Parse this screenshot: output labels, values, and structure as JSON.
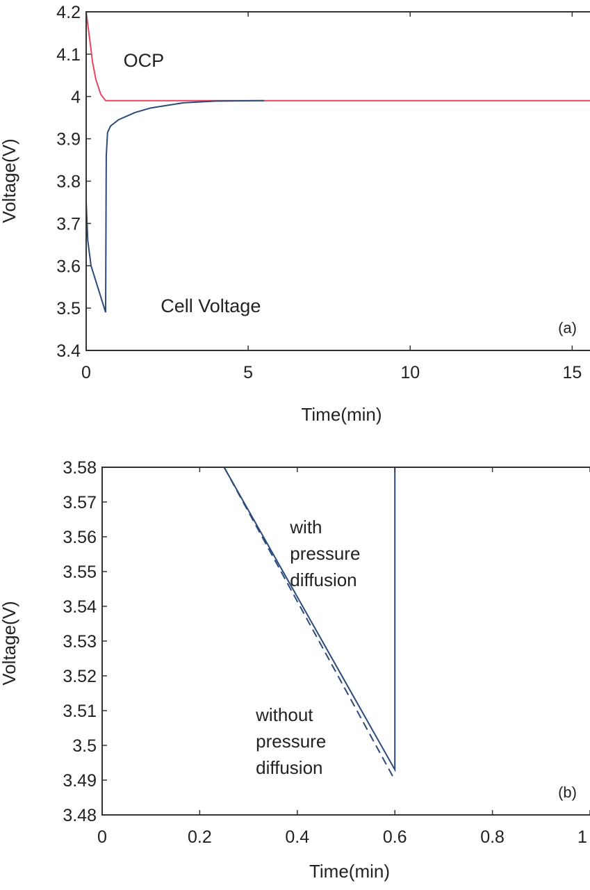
{
  "colors": {
    "ocp": "#e8445f",
    "cell": "#2b4a7a",
    "axis": "#333333"
  },
  "chart_data": [
    {
      "type": "line",
      "panel_label": "(a)",
      "xlabel": "Time(min)",
      "ylabel": "Voltage(V)",
      "xlim": [
        0,
        15.55
      ],
      "ylim": [
        3.4,
        4.2
      ],
      "xticks": [
        "0",
        "5",
        "10",
        "15"
      ],
      "xtick_values": [
        0,
        5,
        10,
        15
      ],
      "yticks": [
        "3.4",
        "3.5",
        "3.6",
        "3.7",
        "3.8",
        "3.9",
        "4",
        "4.1",
        "4.2"
      ],
      "ytick_values": [
        3.4,
        3.5,
        3.6,
        3.7,
        3.8,
        3.9,
        4.0,
        4.1,
        4.2
      ],
      "series": [
        {
          "name": "OCP",
          "style": "solid",
          "color_key": "ocp",
          "x": [
            0,
            0.1,
            0.2,
            0.3,
            0.45,
            0.6,
            15.55
          ],
          "y": [
            4.2,
            4.14,
            4.08,
            4.04,
            4.005,
            3.99,
            3.99
          ]
        },
        {
          "name": "Cell Voltage",
          "style": "solid",
          "color_key": "cell",
          "x": [
            0,
            0.05,
            0.15,
            0.6,
            0.62,
            0.66,
            0.75,
            1.0,
            1.5,
            2.0,
            3.0,
            4.0,
            5.5
          ],
          "y": [
            3.75,
            3.66,
            3.6,
            3.49,
            3.86,
            3.915,
            3.93,
            3.945,
            3.962,
            3.973,
            3.985,
            3.989,
            3.99
          ]
        }
      ],
      "annotations": [
        {
          "text": "OCP",
          "x": 1.15,
          "y": 4.07
        },
        {
          "text": "Cell Voltage",
          "x": 2.3,
          "y": 3.49
        }
      ]
    },
    {
      "type": "line",
      "panel_label": "(b)",
      "xlabel": "Time(min)",
      "ylabel": "Voltage(V)",
      "xlim": [
        0,
        1
      ],
      "ylim": [
        3.48,
        3.58
      ],
      "xticks": [
        "0",
        "0.2",
        "0.4",
        "0.6",
        "0.8",
        "1"
      ],
      "xtick_values": [
        0,
        0.2,
        0.4,
        0.6,
        0.8,
        1
      ],
      "yticks": [
        "3.48",
        "3.49",
        "3.5",
        "3.51",
        "3.52",
        "3.53",
        "3.54",
        "3.55",
        "3.56",
        "3.57",
        "3.58"
      ],
      "ytick_values": [
        3.48,
        3.49,
        3.5,
        3.51,
        3.52,
        3.53,
        3.54,
        3.55,
        3.56,
        3.57,
        3.58
      ],
      "series": [
        {
          "name": "with pressure diffusion",
          "style": "solid",
          "color_key": "cell",
          "x": [
            0.25,
            0.6,
            0.6
          ],
          "y": [
            3.58,
            3.493,
            3.58
          ]
        },
        {
          "name": "without pressure diffusion",
          "style": "dashed",
          "color_key": "cell",
          "x": [
            0.25,
            0.6
          ],
          "y": [
            3.58,
            3.49
          ]
        }
      ],
      "annotations": [
        {
          "lines": [
            "with",
            "pressure",
            "diffusion"
          ],
          "x": 0.385,
          "y": 3.561
        },
        {
          "lines": [
            "without",
            "pressure",
            "diffusion"
          ],
          "x": 0.315,
          "y": 3.507
        }
      ]
    }
  ]
}
